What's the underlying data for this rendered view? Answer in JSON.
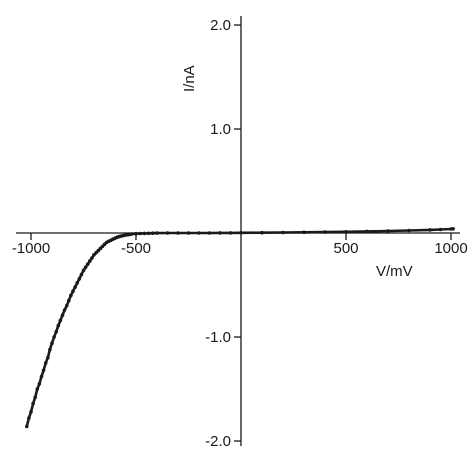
{
  "chart_data": {
    "type": "scatter",
    "xlabel": "V/mV",
    "ylabel": "I/nA",
    "xlim": [
      -1000,
      1000
    ],
    "ylim": [
      -2.0,
      2.0
    ],
    "x_ticks": [
      -1000,
      -500,
      500,
      1000
    ],
    "x_tick_labels": [
      "-1000",
      "-500",
      "500",
      "1000"
    ],
    "y_ticks": [
      2.0,
      1.0,
      -1.0,
      -2.0
    ],
    "y_tick_labels": [
      "2.0",
      "1.0",
      "-1.0",
      "-2.0"
    ],
    "grid": false,
    "legend": "none",
    "series": [
      {
        "marker_color": "#1a1a1a",
        "x": [
          -1020,
          -1010,
          -1000,
          -990,
          -980,
          -970,
          -960,
          -950,
          -940,
          -930,
          -920,
          -910,
          -900,
          -890,
          -880,
          -870,
          -860,
          -850,
          -840,
          -830,
          -820,
          -810,
          -800,
          -790,
          -780,
          -770,
          -760,
          -750,
          -740,
          -730,
          -720,
          -710,
          -700,
          -690,
          -680,
          -670,
          -660,
          -650,
          -640,
          -630,
          -620,
          -610,
          -600,
          -590,
          -580,
          -570,
          -560,
          -550,
          -540,
          -530,
          -520,
          -500,
          -480,
          -460,
          -440,
          -420,
          -400,
          -350,
          -300,
          -250,
          -200,
          -150,
          -100,
          -50,
          0,
          100,
          200,
          300,
          400,
          500,
          600,
          700,
          800,
          900,
          950,
          1000,
          1010
        ],
        "y": [
          -1.86,
          -1.78,
          -1.72,
          -1.64,
          -1.58,
          -1.5,
          -1.45,
          -1.38,
          -1.32,
          -1.25,
          -1.2,
          -1.12,
          -1.06,
          -1.0,
          -0.95,
          -0.89,
          -0.84,
          -0.79,
          -0.74,
          -0.7,
          -0.65,
          -0.6,
          -0.56,
          -0.52,
          -0.48,
          -0.44,
          -0.4,
          -0.36,
          -0.33,
          -0.3,
          -0.27,
          -0.24,
          -0.21,
          -0.19,
          -0.17,
          -0.15,
          -0.13,
          -0.11,
          -0.09,
          -0.08,
          -0.07,
          -0.06,
          -0.05,
          -0.04,
          -0.035,
          -0.03,
          -0.025,
          -0.02,
          -0.016,
          -0.013,
          -0.01,
          -0.007,
          -0.005,
          -0.004,
          -0.003,
          -0.002,
          -0.001,
          0.0,
          0.0,
          0.0,
          0.0,
          0.0,
          0.001,
          0.001,
          0.002,
          0.003,
          0.005,
          0.007,
          0.009,
          0.012,
          0.015,
          0.019,
          0.024,
          0.03,
          0.034,
          0.038,
          0.04
        ]
      }
    ]
  }
}
